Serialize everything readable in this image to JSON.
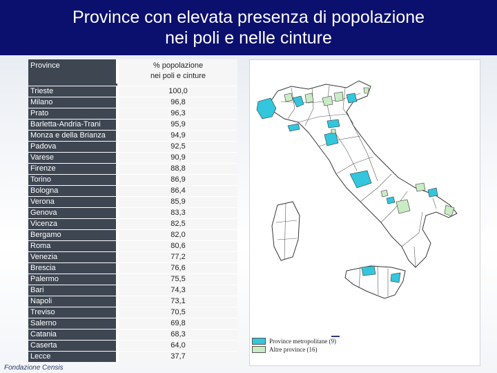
{
  "header": {
    "title": "Province con elevata presenza di popolazione\nnei poli e nelle cinture"
  },
  "table": {
    "col_name_header": "Province",
    "col_value_header": "% popolazione\nnei poli e cinture",
    "rows": [
      {
        "name": "Trieste",
        "value": "100,0"
      },
      {
        "name": "Milano",
        "value": "96,8"
      },
      {
        "name": "Prato",
        "value": "96,3"
      },
      {
        "name": "Barletta-Andria-Trani",
        "value": "95,9"
      },
      {
        "name": "Monza e della Brianza",
        "value": "94,9"
      },
      {
        "name": "Padova",
        "value": "92,5"
      },
      {
        "name": "Varese",
        "value": "90,9"
      },
      {
        "name": "Firenze",
        "value": "88,8"
      },
      {
        "name": "Torino",
        "value": "86,9"
      },
      {
        "name": "Bologna",
        "value": "86,4"
      },
      {
        "name": "Verona",
        "value": "85,9"
      },
      {
        "name": "Genova",
        "value": "83,3"
      },
      {
        "name": "Vicenza",
        "value": "82,5"
      },
      {
        "name": "Bergamo",
        "value": "82,0"
      },
      {
        "name": "Roma",
        "value": "80,6"
      },
      {
        "name": "Venezia",
        "value": "77,2"
      },
      {
        "name": "Brescia",
        "value": "76,6"
      },
      {
        "name": "Palermo",
        "value": "75,5"
      },
      {
        "name": "Bari",
        "value": "74,3"
      },
      {
        "name": "Napoli",
        "value": "73,1"
      },
      {
        "name": "Treviso",
        "value": "70,5"
      },
      {
        "name": "Salerno",
        "value": "69,8"
      },
      {
        "name": "Catania",
        "value": "68,3"
      },
      {
        "name": "Caserta",
        "value": "64,0"
      },
      {
        "name": "Lecce",
        "value": "37,7"
      }
    ]
  },
  "legend": {
    "items": [
      {
        "label": "Province metropolitane (9)",
        "color": "#33c6dd"
      },
      {
        "label": "Altre province (16)",
        "color": "#c9ecc4"
      }
    ]
  },
  "footer": {
    "text": "Fondazione Censis"
  },
  "colors": {
    "header_bg": "#0b0f6e",
    "row_name_bg": "#3e4652",
    "metro": "#33c6dd",
    "other": "#c9ecc4"
  }
}
